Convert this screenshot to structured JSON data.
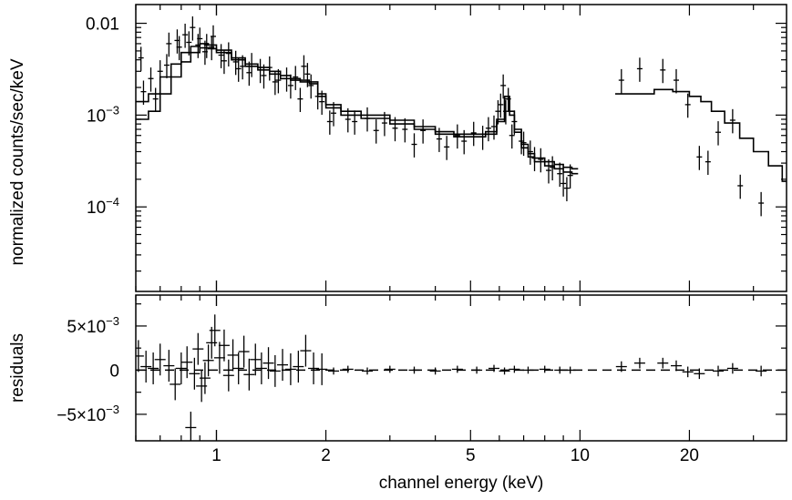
{
  "chart_data": {
    "type": "scatter",
    "xlabel": "channel energy (keV)",
    "x_scale": "log",
    "xlim": [
      0.6,
      37
    ],
    "x_ticks": [
      {
        "value": 1,
        "label": "1"
      },
      {
        "value": 2,
        "label": "2"
      },
      {
        "value": 5,
        "label": "5"
      },
      {
        "value": 10,
        "label": "10"
      },
      {
        "value": 20,
        "label": "20"
      }
    ],
    "panels": [
      {
        "id": "spectrum",
        "ylabel": "normalized counts/sec/keV",
        "y_scale": "log",
        "ylim": [
          1.2e-05,
          0.016
        ],
        "y_ticks": [
          {
            "value": 0.01,
            "label": "0.01"
          },
          {
            "value": 0.001,
            "label": "10",
            "exp": "−3"
          },
          {
            "value": 0.0001,
            "label": "10",
            "exp": "−4"
          }
        ],
        "series": [
          {
            "model": {
              "x": [
                0.6,
                0.65,
                0.7,
                0.75,
                0.8,
                0.85,
                0.9,
                0.95,
                1.0,
                1.1,
                1.2,
                1.3,
                1.4,
                1.5,
                1.6,
                1.7,
                1.8,
                1.9,
                2.0,
                2.2,
                2.5,
                3.0,
                3.5,
                4.0,
                4.5,
                5.0,
                5.5,
                5.9,
                6.2,
                6.4,
                6.6,
                6.9,
                7.2,
                7.5,
                8.0,
                8.5,
                9.0,
                9.5
              ],
              "y": [
                0.0014,
                0.0017,
                0.0026,
                0.0036,
                0.0048,
                0.0056,
                0.006,
                0.0058,
                0.0051,
                0.0042,
                0.0036,
                0.0033,
                0.003,
                0.0027,
                0.0025,
                0.0024,
                0.0023,
                0.0017,
                0.0013,
                0.0011,
                0.001,
                0.00088,
                0.00075,
                0.00066,
                0.00062,
                0.00062,
                0.00066,
                0.0009,
                0.0016,
                0.0011,
                0.0007,
                0.00048,
                0.00038,
                0.00034,
                0.00031,
                0.00029,
                0.00027,
                0.00026
              ]
            },
            "points": [
              {
                "x": 0.62,
                "y": 0.0042
              },
              {
                "x": 0.66,
                "y": 0.0025
              },
              {
                "x": 0.7,
                "y": 0.003
              },
              {
                "x": 0.74,
                "y": 0.006
              },
              {
                "x": 0.78,
                "y": 0.0065
              },
              {
                "x": 0.82,
                "y": 0.0075
              },
              {
                "x": 0.86,
                "y": 0.009
              },
              {
                "x": 0.9,
                "y": 0.0068
              },
              {
                "x": 0.94,
                "y": 0.0058
              },
              {
                "x": 0.98,
                "y": 0.0072
              },
              {
                "x": 1.03,
                "y": 0.0045
              },
              {
                "x": 1.08,
                "y": 0.0047
              },
              {
                "x": 1.13,
                "y": 0.0038
              },
              {
                "x": 1.18,
                "y": 0.0034
              },
              {
                "x": 1.25,
                "y": 0.0036
              },
              {
                "x": 1.32,
                "y": 0.0031
              },
              {
                "x": 1.4,
                "y": 0.0033
              },
              {
                "x": 1.48,
                "y": 0.0024
              },
              {
                "x": 1.56,
                "y": 0.0025
              },
              {
                "x": 1.65,
                "y": 0.0026
              },
              {
                "x": 1.74,
                "y": 0.0034
              },
              {
                "x": 1.82,
                "y": 0.0021
              },
              {
                "x": 1.95,
                "y": 0.0014
              },
              {
                "x": 2.1,
                "y": 0.00105
              },
              {
                "x": 2.3,
                "y": 0.0009
              },
              {
                "x": 2.6,
                "y": 0.00092
              },
              {
                "x": 2.9,
                "y": 0.00082
              },
              {
                "x": 3.3,
                "y": 0.0007
              },
              {
                "x": 3.7,
                "y": 0.00068
              },
              {
                "x": 4.1,
                "y": 0.00055
              },
              {
                "x": 4.6,
                "y": 0.0006
              },
              {
                "x": 5.1,
                "y": 0.00064
              },
              {
                "x": 5.6,
                "y": 0.00072
              },
              {
                "x": 5.95,
                "y": 0.0011
              },
              {
                "x": 6.15,
                "y": 0.0021
              },
              {
                "x": 6.35,
                "y": 0.0015
              },
              {
                "x": 6.6,
                "y": 0.00085
              },
              {
                "x": 6.9,
                "y": 0.00052
              },
              {
                "x": 7.3,
                "y": 0.0004
              },
              {
                "x": 7.8,
                "y": 0.00033
              },
              {
                "x": 8.4,
                "y": 0.00027
              },
              {
                "x": 9.0,
                "y": 0.00018
              },
              {
                "x": 9.4,
                "y": 0.00022
              }
            ]
          },
          {
            "model": {
              "x": [
                0.6,
                0.65,
                0.7,
                0.75,
                0.8,
                0.85,
                0.9,
                0.95,
                1.0,
                1.1,
                1.2,
                1.3,
                1.4,
                1.5,
                1.6,
                1.7,
                1.8,
                1.9,
                2.0,
                2.2,
                2.5,
                3.0,
                3.5,
                4.0,
                4.5,
                5.0,
                5.5,
                5.9,
                6.2,
                6.4,
                6.6,
                6.9,
                7.2,
                7.5,
                8.0,
                8.5,
                9.0,
                9.5
              ],
              "y": [
                0.0009,
                0.0011,
                0.0017,
                0.0026,
                0.0038,
                0.0048,
                0.0054,
                0.0053,
                0.0048,
                0.004,
                0.0034,
                0.0031,
                0.0028,
                0.0025,
                0.0024,
                0.0023,
                0.0022,
                0.0016,
                0.0012,
                0.001,
                0.00092,
                0.0008,
                0.0007,
                0.00062,
                0.00058,
                0.00058,
                0.00062,
                0.00085,
                0.0015,
                0.001,
                0.00065,
                0.00044,
                0.00035,
                0.00031,
                0.00028,
                0.00026,
                0.00024,
                0.00023
              ]
            },
            "points": [
              {
                "x": 0.63,
                "y": 0.0018
              },
              {
                "x": 0.68,
                "y": 0.0015
              },
              {
                "x": 0.73,
                "y": 0.0035
              },
              {
                "x": 0.79,
                "y": 0.0055
              },
              {
                "x": 0.84,
                "y": 0.0062
              },
              {
                "x": 0.89,
                "y": 0.0058
              },
              {
                "x": 0.93,
                "y": 0.0049
              },
              {
                "x": 0.97,
                "y": 0.0055
              },
              {
                "x": 1.05,
                "y": 0.0039
              },
              {
                "x": 1.15,
                "y": 0.0032
              },
              {
                "x": 1.23,
                "y": 0.0029
              },
              {
                "x": 1.35,
                "y": 0.0027
              },
              {
                "x": 1.45,
                "y": 0.0023
              },
              {
                "x": 1.6,
                "y": 0.0021
              },
              {
                "x": 1.7,
                "y": 0.0015
              },
              {
                "x": 1.78,
                "y": 0.0028
              },
              {
                "x": 1.9,
                "y": 0.0016
              },
              {
                "x": 2.05,
                "y": 0.00085
              },
              {
                "x": 2.4,
                "y": 0.00085
              },
              {
                "x": 2.75,
                "y": 0.00068
              },
              {
                "x": 3.1,
                "y": 0.00072
              },
              {
                "x": 3.5,
                "y": 0.00048
              },
              {
                "x": 4.3,
                "y": 0.00045
              },
              {
                "x": 4.8,
                "y": 0.00052
              },
              {
                "x": 5.4,
                "y": 0.00058
              },
              {
                "x": 5.8,
                "y": 0.00075
              },
              {
                "x": 6.05,
                "y": 0.0013
              },
              {
                "x": 6.25,
                "y": 0.0011
              },
              {
                "x": 6.5,
                "y": 0.0006
              },
              {
                "x": 7.0,
                "y": 0.0005
              },
              {
                "x": 7.5,
                "y": 0.00034
              },
              {
                "x": 8.2,
                "y": 0.00025
              },
              {
                "x": 8.8,
                "y": 0.00023
              },
              {
                "x": 9.2,
                "y": 0.00016
              }
            ]
          },
          {
            "model": {
              "x": [
                12.5,
                14.0,
                16.0,
                18.0,
                20.0,
                21.5,
                23.0,
                25.0,
                27.5,
                30.0,
                33.0,
                36.0,
                37.0
              ],
              "y": [
                0.0017,
                0.0017,
                0.0019,
                0.0018,
                0.0016,
                0.0014,
                0.0011,
                0.00082,
                0.00056,
                0.0004,
                0.00028,
                0.00019,
                0.00019
              ]
            },
            "points": [
              {
                "x": 13.0,
                "y": 0.0024
              },
              {
                "x": 14.6,
                "y": 0.0032
              },
              {
                "x": 16.9,
                "y": 0.0031
              },
              {
                "x": 18.4,
                "y": 0.0024
              },
              {
                "x": 19.8,
                "y": 0.0013
              },
              {
                "x": 21.3,
                "y": 0.00035
              },
              {
                "x": 22.5,
                "y": 0.00031
              },
              {
                "x": 24.0,
                "y": 0.00065
              },
              {
                "x": 26.3,
                "y": 0.00088
              },
              {
                "x": 27.6,
                "y": 0.00017
              },
              {
                "x": 31.5,
                "y": 0.00011
              }
            ]
          }
        ]
      },
      {
        "id": "residuals",
        "ylabel": "residuals",
        "y_scale": "linear",
        "ylim": [
          -0.008,
          0.0085
        ],
        "y_ticks": [
          {
            "value": 0.005,
            "label": "5×10",
            "exp": "−3"
          },
          {
            "value": 0,
            "label": "0"
          },
          {
            "value": -0.005,
            "label": "−5×10",
            "exp": "−3"
          }
        ],
        "zero_line": {
          "x_from": 0.6,
          "x_to": 37,
          "style": "dashed"
        },
        "points": [
          {
            "x": 0.61,
            "y": 0.0016
          },
          {
            "x": 0.64,
            "y": 0.0004
          },
          {
            "x": 0.67,
            "y": 0.0002
          },
          {
            "x": 0.7,
            "y": 0.0012
          },
          {
            "x": 0.74,
            "y": 0.0005
          },
          {
            "x": 0.77,
            "y": -0.0016
          },
          {
            "x": 0.8,
            "y": 0.0002
          },
          {
            "x": 0.83,
            "y": 0.0009
          },
          {
            "x": 0.85,
            "y": -0.0065
          },
          {
            "x": 0.87,
            "y": -0.0004
          },
          {
            "x": 0.89,
            "y": 0.0024
          },
          {
            "x": 0.91,
            "y": -0.0018
          },
          {
            "x": 0.93,
            "y": -0.0009
          },
          {
            "x": 0.95,
            "y": 0.0011
          },
          {
            "x": 0.97,
            "y": 0.0031
          },
          {
            "x": 0.99,
            "y": 0.0045
          },
          {
            "x": 1.02,
            "y": 0.0014
          },
          {
            "x": 1.05,
            "y": 0.0028
          },
          {
            "x": 1.08,
            "y": -0.0006
          },
          {
            "x": 1.11,
            "y": 0.0017
          },
          {
            "x": 1.15,
            "y": 0.0002
          },
          {
            "x": 1.19,
            "y": 0.0021
          },
          {
            "x": 1.23,
            "y": -0.0005
          },
          {
            "x": 1.28,
            "y": 0.0012
          },
          {
            "x": 1.33,
            "y": 0.0002
          },
          {
            "x": 1.39,
            "y": 0.0008
          },
          {
            "x": 1.45,
            "y": -0.0001
          },
          {
            "x": 1.52,
            "y": 0.0006
          },
          {
            "x": 1.6,
            "y": 0.0001
          },
          {
            "x": 1.68,
            "y": 0.0004
          },
          {
            "x": 1.76,
            "y": 0.0022
          },
          {
            "x": 1.85,
            "y": 0.0002
          },
          {
            "x": 1.95,
            "y": 0.0001
          },
          {
            "x": 2.1,
            "y": -0.0001
          },
          {
            "x": 2.3,
            "y": 0.0001
          },
          {
            "x": 2.6,
            "y": -0.0001
          },
          {
            "x": 3.0,
            "y": 0.0001
          },
          {
            "x": 3.5,
            "y": 0.0
          },
          {
            "x": 4.0,
            "y": -0.0001
          },
          {
            "x": 4.6,
            "y": 0.0001
          },
          {
            "x": 5.2,
            "y": 0.0
          },
          {
            "x": 5.8,
            "y": 0.0002
          },
          {
            "x": 6.2,
            "y": -0.0001
          },
          {
            "x": 6.6,
            "y": 0.0001
          },
          {
            "x": 7.2,
            "y": 0.0
          },
          {
            "x": 8.0,
            "y": 0.0001
          },
          {
            "x": 8.8,
            "y": 0.0
          },
          {
            "x": 9.4,
            "y": 0.0
          },
          {
            "x": 13.0,
            "y": 0.0004
          },
          {
            "x": 14.6,
            "y": 0.0008
          },
          {
            "x": 16.9,
            "y": 0.0008
          },
          {
            "x": 18.4,
            "y": 0.0005
          },
          {
            "x": 19.8,
            "y": -0.0002
          },
          {
            "x": 21.3,
            "y": -0.0004
          },
          {
            "x": 24.0,
            "y": -0.0001
          },
          {
            "x": 26.3,
            "y": 0.0002
          },
          {
            "x": 31.5,
            "y": -0.0001
          }
        ]
      }
    ]
  }
}
